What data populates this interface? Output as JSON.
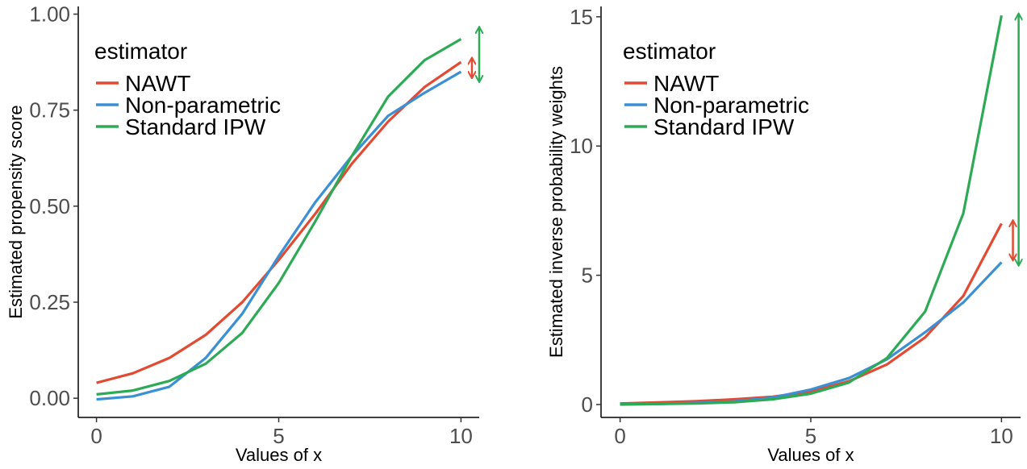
{
  "chart_data": [
    {
      "type": "line",
      "xlabel": "Values of x",
      "ylabel": "Estimated propensity score",
      "xlim": [
        -0.5,
        10.5
      ],
      "ylim": [
        -0.05,
        1.02
      ],
      "xticks": [
        0,
        5,
        10
      ],
      "xtick_labels": [
        "0",
        "5",
        "10"
      ],
      "yticks": [
        0,
        0.25,
        0.5,
        0.75,
        1.0
      ],
      "ytick_labels": [
        "0.00",
        "0.25",
        "0.50",
        "0.75",
        "1.00"
      ],
      "grid": false,
      "legend": {
        "title": "estimator",
        "placement": "top-left"
      },
      "x": [
        0,
        1,
        2,
        3,
        4,
        5,
        6,
        7,
        8,
        9,
        10
      ],
      "series": [
        {
          "name": "NAWT",
          "color": "#E24A33",
          "values": [
            0.04,
            0.065,
            0.105,
            0.165,
            0.25,
            0.36,
            0.48,
            0.61,
            0.72,
            0.81,
            0.875
          ]
        },
        {
          "name": "Non-parametric",
          "color": "#3B8FD5",
          "values": [
            -0.003,
            0.005,
            0.03,
            0.105,
            0.22,
            0.37,
            0.51,
            0.63,
            0.735,
            0.795,
            0.85
          ]
        },
        {
          "name": "Standard IPW",
          "color": "#2EAA57",
          "values": [
            0.01,
            0.02,
            0.045,
            0.09,
            0.17,
            0.3,
            0.46,
            0.63,
            0.785,
            0.88,
            0.935
          ]
        }
      ],
      "annotations": [
        {
          "type": "double-arrow",
          "x": 10.3,
          "y_from": 0.835,
          "y_to": 0.885,
          "color": "#E24A33"
        },
        {
          "type": "double-arrow",
          "x": 10.5,
          "y_from": 0.825,
          "y_to": 0.965,
          "color": "#2EAA57"
        }
      ]
    },
    {
      "type": "line",
      "xlabel": "Values of x",
      "ylabel": "Estimated inverse probability weights",
      "xlim": [
        -0.5,
        10.5
      ],
      "ylim": [
        -0.5,
        15.4
      ],
      "xticks": [
        0,
        5,
        10
      ],
      "xtick_labels": [
        "0",
        "5",
        "10"
      ],
      "yticks": [
        0,
        5,
        10,
        15
      ],
      "ytick_labels": [
        "0",
        "5",
        "10",
        "15"
      ],
      "grid": false,
      "legend": {
        "title": "estimator",
        "placement": "top-left"
      },
      "x": [
        0,
        1,
        2,
        3,
        4,
        5,
        6,
        7,
        8,
        9,
        10
      ],
      "series": [
        {
          "name": "NAWT",
          "color": "#E24A33",
          "values": [
            0.04,
            0.08,
            0.13,
            0.2,
            0.3,
            0.5,
            0.9,
            1.55,
            2.6,
            4.2,
            7.0
          ]
        },
        {
          "name": "Non-parametric",
          "color": "#3B8FD5",
          "values": [
            0.0,
            0.02,
            0.06,
            0.12,
            0.27,
            0.58,
            1.02,
            1.75,
            2.8,
            3.95,
            5.5
          ]
        },
        {
          "name": "Standard IPW",
          "color": "#2EAA57",
          "values": [
            0.01,
            0.02,
            0.04,
            0.09,
            0.2,
            0.42,
            0.85,
            1.8,
            3.6,
            7.4,
            15.05
          ]
        }
      ],
      "annotations": [
        {
          "type": "double-arrow",
          "x": 10.3,
          "y_from": 5.6,
          "y_to": 7.1,
          "color": "#E24A33"
        },
        {
          "type": "double-arrow",
          "x": 10.45,
          "y_from": 5.4,
          "y_to": 15.1,
          "color": "#2EAA57"
        }
      ]
    }
  ]
}
